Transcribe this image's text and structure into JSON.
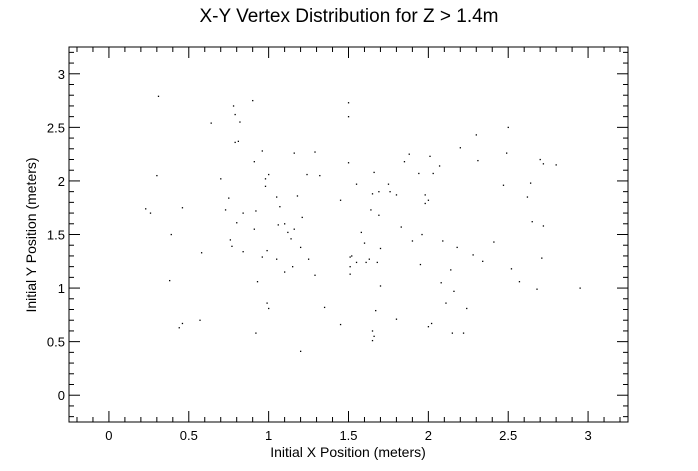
{
  "chart_data": {
    "type": "scatter",
    "title": "X-Y Vertex Distribution for Z > 1.4m",
    "xlabel": "Initial X Position (meters)",
    "ylabel": "Initial Y Position (meters)",
    "xlim": [
      -0.25,
      3.25
    ],
    "ylim": [
      -0.25,
      3.25
    ],
    "xticks": [
      0,
      0.5,
      1,
      1.5,
      2,
      2.5,
      3
    ],
    "yticks": [
      0,
      0.5,
      1,
      1.5,
      2,
      2.5,
      3
    ],
    "xtick_labels": [
      "0",
      "0.5",
      "1",
      "1.5",
      "2",
      "2.5",
      "3"
    ],
    "ytick_labels": [
      "0",
      "0.5",
      "1",
      "1.5",
      "2",
      "2.5",
      "3"
    ],
    "grid": false,
    "marker_color": "#000000",
    "points": [
      [
        0.31,
        2.79
      ],
      [
        0.3,
        2.05
      ],
      [
        0.23,
        1.74
      ],
      [
        0.26,
        1.7
      ],
      [
        0.46,
        1.75
      ],
      [
        0.39,
        1.5
      ],
      [
        0.38,
        1.07
      ],
      [
        0.46,
        0.67
      ],
      [
        0.44,
        0.63
      ],
      [
        0.57,
        0.7
      ],
      [
        0.58,
        1.33
      ],
      [
        0.64,
        2.54
      ],
      [
        0.7,
        2.02
      ],
      [
        0.73,
        1.73
      ],
      [
        0.75,
        1.84
      ],
      [
        0.76,
        1.45
      ],
      [
        0.78,
        2.7
      ],
      [
        0.79,
        2.62
      ],
      [
        0.79,
        2.36
      ],
      [
        0.82,
        2.55
      ],
      [
        0.81,
        2.37
      ],
      [
        0.8,
        1.61
      ],
      [
        0.77,
        1.39
      ],
      [
        0.84,
        1.34
      ],
      [
        0.84,
        1.7
      ],
      [
        0.9,
        2.75
      ],
      [
        0.91,
        2.18
      ],
      [
        0.91,
        1.55
      ],
      [
        0.92,
        1.72
      ],
      [
        0.96,
        2.28
      ],
      [
        0.98,
        2.02
      ],
      [
        0.98,
        1.95
      ],
      [
        1.0,
        2.06
      ],
      [
        0.99,
        1.35
      ],
      [
        0.96,
        1.29
      ],
      [
        0.93,
        1.06
      ],
      [
        0.99,
        0.86
      ],
      [
        1.0,
        0.81
      ],
      [
        0.92,
        0.58
      ],
      [
        1.05,
        1.85
      ],
      [
        1.07,
        1.76
      ],
      [
        1.06,
        1.59
      ],
      [
        1.05,
        1.27
      ],
      [
        1.1,
        1.6
      ],
      [
        1.1,
        1.15
      ],
      [
        1.12,
        1.52
      ],
      [
        1.14,
        1.46
      ],
      [
        1.16,
        2.26
      ],
      [
        1.16,
        1.55
      ],
      [
        1.15,
        1.2
      ],
      [
        1.18,
        1.86
      ],
      [
        1.2,
        1.38
      ],
      [
        1.21,
        1.66
      ],
      [
        1.24,
        2.06
      ],
      [
        1.25,
        1.27
      ],
      [
        1.29,
        1.12
      ],
      [
        1.29,
        2.27
      ],
      [
        1.32,
        2.05
      ],
      [
        1.35,
        0.82
      ],
      [
        1.2,
        0.41
      ],
      [
        1.45,
        1.82
      ],
      [
        1.45,
        0.66
      ],
      [
        1.5,
        2.73
      ],
      [
        1.5,
        2.6
      ],
      [
        1.5,
        2.17
      ],
      [
        1.51,
        1.29
      ],
      [
        1.51,
        1.2
      ],
      [
        1.51,
        1.13
      ],
      [
        1.52,
        1.3
      ],
      [
        1.55,
        1.97
      ],
      [
        1.55,
        1.24
      ],
      [
        1.58,
        1.52
      ],
      [
        1.6,
        1.42
      ],
      [
        1.61,
        1.24
      ],
      [
        1.63,
        1.27
      ],
      [
        1.65,
        1.88
      ],
      [
        1.64,
        1.73
      ],
      [
        1.66,
        2.08
      ],
      [
        1.65,
        0.51
      ],
      [
        1.66,
        0.55
      ],
      [
        1.65,
        0.6
      ],
      [
        1.67,
        0.79
      ],
      [
        1.68,
        1.24
      ],
      [
        1.69,
        1.9
      ],
      [
        1.69,
        1.68
      ],
      [
        1.7,
        1.37
      ],
      [
        1.7,
        1.02
      ],
      [
        1.75,
        1.97
      ],
      [
        1.76,
        1.9
      ],
      [
        1.8,
        0.71
      ],
      [
        1.8,
        1.87
      ],
      [
        1.83,
        1.57
      ],
      [
        1.85,
        2.18
      ],
      [
        1.88,
        2.25
      ],
      [
        1.9,
        1.44
      ],
      [
        1.94,
        2.07
      ],
      [
        1.95,
        1.22
      ],
      [
        1.96,
        1.5
      ],
      [
        1.98,
        1.87
      ],
      [
        1.98,
        1.79
      ],
      [
        2.0,
        1.82
      ],
      [
        2.0,
        0.64
      ],
      [
        2.02,
        0.67
      ],
      [
        2.01,
        2.23
      ],
      [
        2.03,
        2.07
      ],
      [
        2.07,
        2.14
      ],
      [
        2.09,
        1.44
      ],
      [
        2.08,
        1.05
      ],
      [
        2.11,
        0.86
      ],
      [
        2.14,
        1.17
      ],
      [
        2.15,
        0.58
      ],
      [
        2.16,
        0.97
      ],
      [
        2.18,
        1.38
      ],
      [
        2.2,
        2.31
      ],
      [
        2.22,
        0.58
      ],
      [
        2.24,
        0.81
      ],
      [
        2.28,
        1.31
      ],
      [
        2.3,
        2.43
      ],
      [
        2.31,
        2.19
      ],
      [
        2.34,
        1.25
      ],
      [
        2.41,
        1.43
      ],
      [
        2.47,
        1.96
      ],
      [
        2.49,
        2.26
      ],
      [
        2.5,
        2.5
      ],
      [
        2.52,
        1.18
      ],
      [
        2.57,
        1.06
      ],
      [
        2.62,
        1.85
      ],
      [
        2.64,
        1.98
      ],
      [
        2.65,
        1.62
      ],
      [
        2.68,
        0.99
      ],
      [
        2.7,
        2.2
      ],
      [
        2.72,
        2.16
      ],
      [
        2.71,
        1.28
      ],
      [
        2.72,
        1.58
      ],
      [
        2.8,
        2.15
      ],
      [
        2.95,
        1.0
      ]
    ]
  }
}
